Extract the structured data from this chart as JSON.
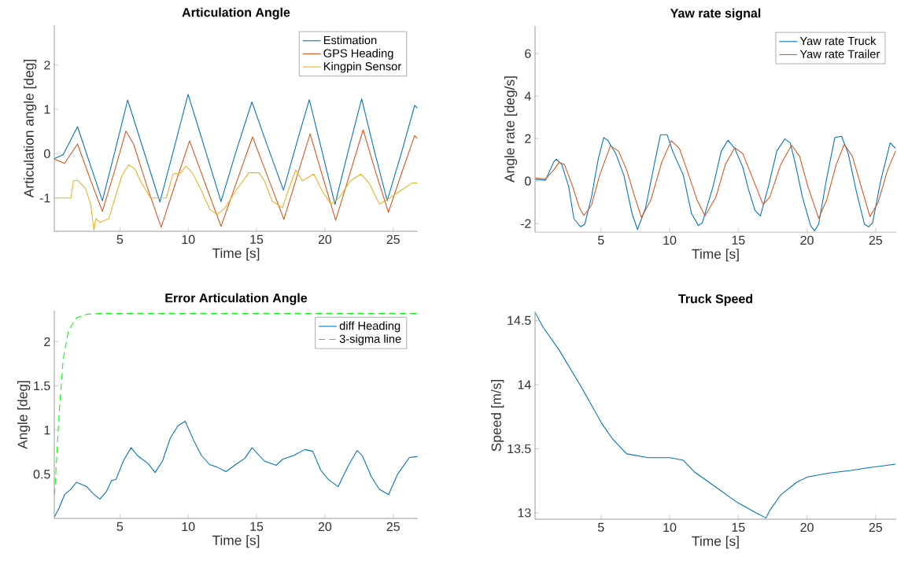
{
  "chart_data": [
    {
      "type": "line",
      "title": "Articulation Angle",
      "xlabel": "Time [s]",
      "ylabel": "Articulation angle [deg]",
      "xlim": [
        0.2,
        26.8
      ],
      "ylim": [
        -1.75,
        2.9
      ],
      "xticks": [
        5,
        10,
        15,
        20,
        25
      ],
      "yticks": [
        -1,
        0,
        1,
        2
      ],
      "legend": "top right",
      "marker": "none",
      "grid": false,
      "series": [
        {
          "name": "Estimation",
          "color": "#0072bd",
          "line_style": "solid",
          "x": [
            0.22,
            0.85,
            1.9,
            2.8,
            3.72,
            4.65,
            5.57,
            6.75,
            7.93,
            8.96,
            9.99,
            11.2,
            12.4,
            13.5,
            14.66,
            15.8,
            16.97,
            17.9,
            18.86,
            19.8,
            20.74,
            21.7,
            22.69,
            23.6,
            24.56,
            25.6,
            26.57,
            26.76
          ],
          "values": [
            -0.11,
            -0.02,
            0.61,
            -0.22,
            -1.06,
            0.07,
            1.21,
            0.06,
            -1.09,
            0.12,
            1.34,
            0.13,
            -1.08,
            0.05,
            1.17,
            0.17,
            -0.82,
            0.2,
            1.22,
            0.04,
            -1.14,
            0.05,
            1.24,
            0.09,
            -1.06,
            0.02,
            1.09,
            1.03
          ]
        },
        {
          "name": "GPS Heading",
          "color": "#d95319",
          "line_style": "solid",
          "x": [
            0.22,
            0.95,
            1.9,
            2.8,
            3.72,
            4.6,
            5.44,
            6.0,
            7.0,
            8.02,
            9.05,
            10.1,
            11.25,
            12.4,
            13.55,
            14.71,
            15.85,
            17.0,
            17.95,
            18.92,
            19.85,
            20.79,
            21.8,
            22.8,
            23.7,
            24.65,
            25.6,
            26.57,
            26.76
          ],
          "values": [
            -0.12,
            -0.22,
            0.22,
            -0.55,
            -1.3,
            -0.4,
            0.51,
            0.22,
            -0.75,
            -1.66,
            -0.68,
            0.29,
            -0.68,
            -1.64,
            -0.63,
            0.38,
            -0.55,
            -1.48,
            -0.52,
            0.45,
            -0.53,
            -1.5,
            -0.48,
            0.54,
            -0.4,
            -1.32,
            -0.45,
            0.41,
            0.34
          ]
        },
        {
          "name": "Kingpin Sensor",
          "color": "#edb120",
          "line_style": "solid",
          "x": [
            0.22,
            1.42,
            1.6,
            1.9,
            2.48,
            2.86,
            3.1,
            3.24,
            3.53,
            4.2,
            4.5,
            5.15,
            5.63,
            6.1,
            6.49,
            7.25,
            8.4,
            8.88,
            9.45,
            9.83,
            10.3,
            10.98,
            11.56,
            12.13,
            12.7,
            13.47,
            14.43,
            15.19,
            15.57,
            16.15,
            16.9,
            17.3,
            17.87,
            18.35,
            19.2,
            19.8,
            20.45,
            21.02,
            21.88,
            22.65,
            23.23,
            24.0,
            24.75,
            25.5,
            26.38,
            26.76
          ],
          "values": [
            -1.0,
            -1.0,
            -0.61,
            -0.6,
            -0.78,
            -1.14,
            -1.72,
            -1.46,
            -1.55,
            -1.46,
            -1.14,
            -0.49,
            -0.25,
            -0.34,
            -0.61,
            -1.0,
            -1.0,
            -0.46,
            -0.43,
            -0.28,
            -0.43,
            -0.84,
            -1.25,
            -1.37,
            -1.22,
            -0.84,
            -0.43,
            -0.43,
            -0.61,
            -1.07,
            -1.22,
            -0.84,
            -0.37,
            -0.61,
            -0.46,
            -0.84,
            -1.14,
            -1.0,
            -0.61,
            -0.46,
            -0.66,
            -1.14,
            -1.0,
            -0.84,
            -0.66,
            -0.66
          ]
        }
      ]
    },
    {
      "type": "line",
      "title": "Yaw rate signal",
      "xlabel": "Time [s]",
      "ylabel": "Angle rate [deg/s]",
      "xlim": [
        0.2,
        26.5
      ],
      "ylim": [
        -2.4,
        7.3
      ],
      "xticks": [
        5,
        10,
        15,
        20,
        25
      ],
      "yticks": [
        -2,
        0,
        2,
        4,
        6
      ],
      "legend": "top right",
      "marker": "none",
      "grid": false,
      "series": [
        {
          "name": "Yaw rate Truck",
          "color": "#0072bd",
          "line_style": "solid",
          "x": [
            0.22,
            0.96,
            1.56,
            1.75,
            2.15,
            2.64,
            3.03,
            3.52,
            3.82,
            4.31,
            4.8,
            5.2,
            5.49,
            6.08,
            6.67,
            7.26,
            7.66,
            8.25,
            8.84,
            9.33,
            9.82,
            10.22,
            11.0,
            11.59,
            12.09,
            12.38,
            13.17,
            13.76,
            14.25,
            14.74,
            15.33,
            15.73,
            16.22,
            16.61,
            17.2,
            17.8,
            18.39,
            18.78,
            19.17,
            19.67,
            20.26,
            20.55,
            20.85,
            21.44,
            22.03,
            22.52,
            23.01,
            23.6,
            24.19,
            24.49,
            24.78,
            25.37,
            26.06,
            26.45
          ],
          "values": [
            0.08,
            0.04,
            0.9,
            1.03,
            0.78,
            -0.24,
            -1.77,
            -2.15,
            -2.03,
            -0.75,
            1.03,
            2.05,
            1.92,
            1.29,
            0.27,
            -1.52,
            -2.28,
            -1.26,
            0.65,
            2.18,
            2.18,
            1.41,
            0.27,
            -1.52,
            -2.09,
            -1.96,
            -0.24,
            1.41,
            1.92,
            1.54,
            0.65,
            -0.37,
            -1.39,
            -1.64,
            -0.24,
            1.41,
            1.99,
            1.8,
            0.78,
            -0.75,
            -2.09,
            -2.34,
            -2.03,
            0.14,
            2.05,
            2.11,
            1.29,
            -0.5,
            -2.03,
            -2.15,
            -1.96,
            0.01,
            1.8,
            1.54
          ]
        },
        {
          "name": "Yaw rate Trailer",
          "color": "#d95319",
          "line_style": "solid",
          "x": [
            0.22,
            0.96,
            1.56,
            1.95,
            2.34,
            2.93,
            3.43,
            3.76,
            4.31,
            4.9,
            5.69,
            6.28,
            6.87,
            7.46,
            7.95,
            8.64,
            9.43,
            10.12,
            10.71,
            11.4,
            11.99,
            12.58,
            13.37,
            14.06,
            14.74,
            15.33,
            16.12,
            16.81,
            17.3,
            18.09,
            18.88,
            19.47,
            20.06,
            20.85,
            21.44,
            22.13,
            22.72,
            23.31,
            24.0,
            24.59,
            25.18,
            25.87,
            26.45
          ],
          "values": [
            0.14,
            0.1,
            0.52,
            0.88,
            0.78,
            -0.24,
            -1.26,
            -1.62,
            -1.13,
            0.27,
            1.67,
            1.41,
            0.52,
            -0.75,
            -1.71,
            -0.88,
            0.9,
            1.9,
            1.54,
            0.27,
            -0.88,
            -1.64,
            -0.75,
            0.78,
            1.57,
            1.29,
            0.01,
            -1.11,
            -0.75,
            0.78,
            1.69,
            1.16,
            -0.24,
            -1.75,
            -0.88,
            0.78,
            1.73,
            1.16,
            -0.37,
            -1.67,
            -1.01,
            0.52,
            1.41
          ]
        }
      ]
    },
    {
      "type": "line",
      "title": "Error Articulation Angle",
      "xlabel": "Time [s]",
      "ylabel": "Angle [deg]",
      "xlim": [
        0.2,
        26.8
      ],
      "ylim": [
        0,
        2.35
      ],
      "xticks": [
        5,
        10,
        15,
        20,
        25
      ],
      "yticks": [
        0.5,
        1,
        1.5,
        2
      ],
      "legend": "top right",
      "marker": "none",
      "grid": false,
      "series": [
        {
          "name": "diff Heading",
          "color": "#0072bd",
          "line_style": "solid",
          "x": [
            0.22,
            0.56,
            0.95,
            1.42,
            1.81,
            2.57,
            3.05,
            3.53,
            4.0,
            4.39,
            4.71,
            5.25,
            5.82,
            6.3,
            7.07,
            7.58,
            8.12,
            8.69,
            9.26,
            9.78,
            10.41,
            10.98,
            11.56,
            12.13,
            12.76,
            13.47,
            14.14,
            14.67,
            15.57,
            16.43,
            16.91,
            17.68,
            18.54,
            19.11,
            19.69,
            20.26,
            20.97,
            21.69,
            22.36,
            22.74,
            23.41,
            23.99,
            24.66,
            25.32,
            26.18,
            26.76
          ],
          "values": [
            0.02,
            0.12,
            0.27,
            0.33,
            0.41,
            0.36,
            0.28,
            0.22,
            0.3,
            0.43,
            0.44,
            0.65,
            0.8,
            0.71,
            0.62,
            0.52,
            0.65,
            0.91,
            1.05,
            1.1,
            0.88,
            0.71,
            0.61,
            0.58,
            0.53,
            0.61,
            0.68,
            0.8,
            0.65,
            0.6,
            0.67,
            0.71,
            0.78,
            0.76,
            0.55,
            0.44,
            0.36,
            0.59,
            0.77,
            0.71,
            0.47,
            0.33,
            0.27,
            0.5,
            0.69,
            0.7
          ]
        },
        {
          "name": "3-sigma line",
          "color": "#00ff00",
          "line_style": "dashed",
          "x": [
            0.22,
            0.37,
            0.56,
            0.85,
            1.23,
            1.81,
            2.57,
            3.53,
            26.76
          ],
          "values": [
            0.27,
            0.68,
            1.21,
            1.8,
            2.12,
            2.27,
            2.31,
            2.32,
            2.32
          ]
        }
      ]
    },
    {
      "type": "line",
      "title": "Truck Speed",
      "xlabel": "Time [s]",
      "ylabel": "Speed [m/s]",
      "xlim": [
        0.2,
        26.5
      ],
      "ylim": [
        12.95,
        14.57
      ],
      "xticks": [
        5,
        10,
        15,
        20,
        25
      ],
      "yticks": [
        13,
        13.5,
        14,
        14.5
      ],
      "marker": "none",
      "grid": false,
      "series": [
        {
          "color": "#0072bd",
          "line_style": "solid",
          "x": [
            0.22,
            0.77,
            1.95,
            3.52,
            5.1,
            5.89,
            6.87,
            8.44,
            10.02,
            11.0,
            11.79,
            13.37,
            14.94,
            16.12,
            17.01,
            17.3,
            18.09,
            19.27,
            20.06,
            21.63,
            23.21,
            24.39,
            26.45
          ],
          "values": [
            14.56,
            14.45,
            14.27,
            13.99,
            13.69,
            13.57,
            13.46,
            13.43,
            13.43,
            13.41,
            13.32,
            13.2,
            13.08,
            13.01,
            12.96,
            13.02,
            13.14,
            13.24,
            13.28,
            13.31,
            13.33,
            13.35,
            13.38
          ]
        }
      ]
    }
  ]
}
